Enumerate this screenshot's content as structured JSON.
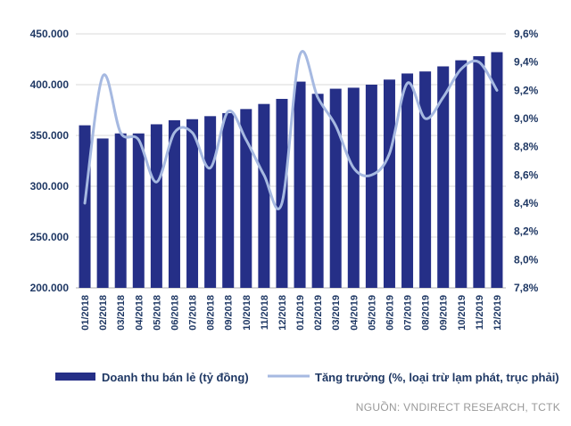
{
  "chart_data": {
    "type": "combo",
    "categories": [
      "01/2018",
      "02/2018",
      "03/2018",
      "04/2018",
      "05/2018",
      "06/2018",
      "07/2018",
      "08/2018",
      "09/2018",
      "10/2018",
      "11/2018",
      "12/2018",
      "01/2019",
      "02/2019",
      "03/2019",
      "04/2019",
      "05/2019",
      "06/2019",
      "07/2019",
      "08/2019",
      "09/2019",
      "10/2019",
      "11/2019",
      "12/2019"
    ],
    "series": [
      {
        "name": "Doanh thu bán lẻ (tỷ đồng)",
        "type": "bar",
        "axis": "left",
        "color": "#252F87",
        "values": [
          360000,
          347000,
          352000,
          352000,
          361000,
          365000,
          366000,
          369000,
          372000,
          376000,
          381000,
          386000,
          403000,
          391000,
          396000,
          397000,
          400000,
          405000,
          411000,
          413000,
          418000,
          424000,
          428000,
          432000
        ]
      },
      {
        "name": "Tăng trưởng (%, loại trừ lạm phát, trục phải)",
        "type": "line",
        "axis": "right",
        "color": "#A6B9E1",
        "values": [
          8.4,
          9.3,
          8.9,
          8.85,
          8.55,
          8.9,
          8.9,
          8.65,
          9.05,
          8.85,
          8.6,
          8.4,
          9.45,
          9.15,
          8.95,
          8.65,
          8.6,
          8.75,
          9.25,
          9.0,
          9.15,
          9.35,
          9.4,
          9.2
        ]
      }
    ],
    "left_axis": {
      "min": 200000,
      "max": 450000,
      "tick_labels": [
        "450.000",
        "400.000",
        "350.000",
        "300.000",
        "250.000",
        "200.000"
      ]
    },
    "right_axis": {
      "min": 7.8,
      "max": 9.6,
      "tick_labels": [
        "9,6%",
        "9,4%",
        "9,2%",
        "9,0%",
        "8,8%",
        "8,6%",
        "8,4%",
        "8,2%",
        "8,0%",
        "7,8%"
      ]
    },
    "grid": true,
    "legend_position": "bottom",
    "source": "NGUỒN: VNDIRECT RESEARCH, TCTK",
    "colors": {
      "axis_text": "#1F3864",
      "grid": "#D9D9D9",
      "axis_line": "#BFBFBF",
      "source_text": "#999999",
      "background": "#FFFFFF"
    }
  }
}
